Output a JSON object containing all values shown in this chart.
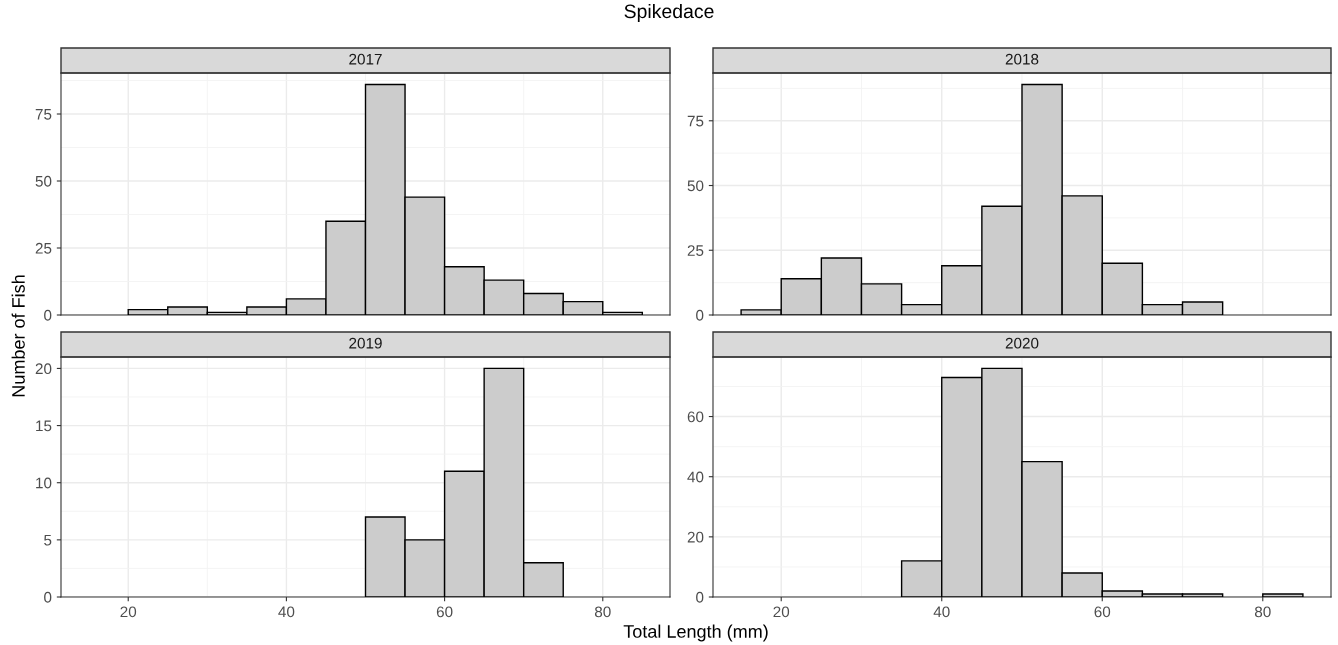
{
  "chart_data": [
    {
      "type": "histogram",
      "title": "Spikedace",
      "subtitle": "2017",
      "xlabel": "Total Length (mm)",
      "ylabel": "Number of Fish",
      "bins": [
        20,
        25,
        30,
        35,
        40,
        45,
        50,
        55,
        60,
        65,
        70,
        75,
        80,
        85
      ],
      "values": [
        2,
        3,
        1,
        3,
        6,
        35,
        86,
        44,
        18,
        13,
        8,
        5,
        1
      ],
      "color": "#cccccc",
      "xlim": [
        11.5,
        88.5
      ],
      "xticks": [
        20,
        40,
        60,
        80
      ],
      "ylim": [
        0,
        90.3
      ],
      "yticks": [
        0,
        25,
        50,
        75
      ],
      "grid": true,
      "tick_labels": "y"
    },
    {
      "type": "histogram",
      "subtitle": "2018",
      "bins": [
        15,
        20,
        25,
        30,
        35,
        40,
        45,
        50,
        55,
        60,
        65,
        70,
        75
      ],
      "values": [
        2,
        14,
        22,
        12,
        4,
        19,
        42,
        89,
        46,
        20,
        4,
        5
      ],
      "color": "#cccccc",
      "xlim": [
        11.5,
        88.5
      ],
      "xticks": [
        20,
        40,
        60,
        80
      ],
      "ylim": [
        0,
        93.45
      ],
      "yticks": [
        0,
        25,
        50,
        75
      ],
      "grid": true,
      "tick_labels": "y"
    },
    {
      "type": "histogram",
      "subtitle": "2019",
      "bins": [
        50,
        55,
        60,
        65,
        70,
        75
      ],
      "values": [
        7,
        5,
        11,
        20,
        3
      ],
      "color": "#cccccc",
      "xlim": [
        11.5,
        88.5
      ],
      "xticks": [
        20,
        40,
        60,
        80
      ],
      "ylim": [
        0,
        21
      ],
      "yticks": [
        0,
        5,
        10,
        15,
        20
      ],
      "grid": true
    },
    {
      "type": "histogram",
      "subtitle": "2020",
      "bins": [
        35,
        40,
        45,
        50,
        55,
        60,
        65,
        70,
        75,
        80,
        85
      ],
      "values": [
        12,
        73,
        76,
        45,
        8,
        2,
        1,
        1,
        0,
        1
      ],
      "color": "#cccccc",
      "xlim": [
        11.5,
        88.5
      ],
      "xticks": [
        20,
        40,
        60,
        80
      ],
      "ylim": [
        0,
        79.8
      ],
      "yticks": [
        0,
        20,
        40,
        60
      ],
      "grid": true
    }
  ]
}
